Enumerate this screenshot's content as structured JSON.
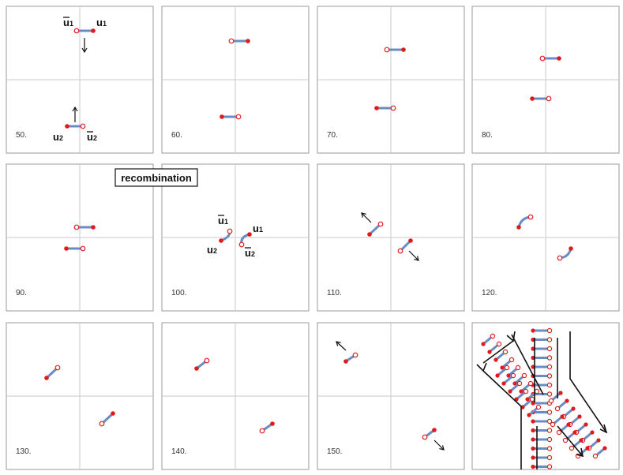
{
  "title_label": "recombination",
  "panels": [
    {
      "step": "50.",
      "pairs": [
        {
          "p": [
            118,
            39
          ],
          "a": [
            97,
            39
          ]
        },
        {
          "p": [
            85,
            160
          ],
          "a": [
            105,
            160
          ]
        }
      ],
      "labels": [
        {
          "text": "u",
          "sub": "1",
          "bar": false,
          "at": [
            122,
            33
          ]
        },
        {
          "text": "u",
          "sub": "1",
          "bar": true,
          "at": [
            80,
            33
          ]
        },
        {
          "text": "u",
          "sub": "2",
          "bar": false,
          "at": [
            67,
            178
          ]
        },
        {
          "text": "u",
          "sub": "2",
          "bar": true,
          "at": [
            110,
            178
          ]
        }
      ],
      "arrows": [
        {
          "from": [
            107,
            48
          ],
          "to": [
            107,
            66
          ]
        },
        {
          "from": [
            95,
            155
          ],
          "to": [
            95,
            136
          ]
        }
      ]
    },
    {
      "step": "60.",
      "pairs": [
        {
          "p": [
            314,
            52
          ],
          "a": [
            293,
            52
          ]
        },
        {
          "p": [
            281,
            148
          ],
          "a": [
            302,
            148
          ]
        }
      ]
    },
    {
      "step": "70.",
      "pairs": [
        {
          "p": [
            511,
            63
          ],
          "a": [
            490,
            63
          ]
        },
        {
          "p": [
            477,
            137
          ],
          "a": [
            498,
            137
          ]
        }
      ]
    },
    {
      "step": "80.",
      "pairs": [
        {
          "p": [
            708,
            74
          ],
          "a": [
            687,
            74
          ]
        },
        {
          "p": [
            674,
            125
          ],
          "a": [
            695,
            125
          ]
        }
      ]
    },
    {
      "step": "90.",
      "pairs": [
        {
          "p": [
            118,
            288
          ],
          "a": [
            97,
            288
          ]
        },
        {
          "p": [
            84,
            315
          ],
          "a": [
            105,
            315
          ]
        }
      ]
    },
    {
      "step": "100.",
      "pairs": [
        {
          "p": [
            280,
            305
          ],
          "a": [
            291,
            293
          ],
          "curve": [
            292,
            300
          ]
        },
        {
          "p": [
            316,
            297
          ],
          "a": [
            306,
            310
          ],
          "curve": [
            304,
            300
          ]
        }
      ],
      "labels": [
        {
          "text": "u",
          "sub": "1",
          "bar": true,
          "at": [
            276,
            284
          ]
        },
        {
          "text": "u",
          "sub": "1",
          "bar": false,
          "at": [
            320,
            294
          ]
        },
        {
          "text": "u",
          "sub": "2",
          "bar": false,
          "at": [
            262,
            321
          ]
        },
        {
          "text": "u",
          "sub": "2",
          "bar": true,
          "at": [
            310,
            325
          ]
        }
      ]
    },
    {
      "step": "110.",
      "pairs": [
        {
          "p": [
            468,
            297
          ],
          "a": [
            482,
            284
          ]
        },
        {
          "p": [
            520,
            305
          ],
          "a": [
            507,
            318
          ]
        }
      ],
      "arrows": [
        {
          "from": [
            470,
            282
          ],
          "to": [
            458,
            270
          ]
        },
        {
          "from": [
            518,
            318
          ],
          "to": [
            530,
            330
          ]
        }
      ]
    },
    {
      "step": "120.",
      "pairs": [
        {
          "p": [
            657,
            288
          ],
          "a": [
            672,
            275
          ],
          "curve": [
            660,
            276
          ]
        },
        {
          "p": [
            723,
            315
          ],
          "a": [
            709,
            327
          ],
          "curve": [
            720,
            326
          ]
        }
      ]
    },
    {
      "step": "130.",
      "pairs": [
        {
          "p": [
            59,
            479
          ],
          "a": [
            73,
            466
          ]
        },
        {
          "p": [
            143,
            524
          ],
          "a": [
            129,
            537
          ]
        }
      ]
    },
    {
      "step": "140.",
      "pairs": [
        {
          "p": [
            249,
            467
          ],
          "a": [
            262,
            457
          ]
        },
        {
          "p": [
            345,
            537
          ],
          "a": [
            332,
            546
          ]
        }
      ]
    },
    {
      "step": "150.",
      "pairs": [
        {
          "p": [
            438,
            458
          ],
          "a": [
            450,
            450
          ]
        },
        {
          "p": [
            550,
            545
          ],
          "a": [
            538,
            554
          ]
        }
      ],
      "arrows": [
        {
          "from": [
            438,
            444
          ],
          "to": [
            426,
            433
          ]
        },
        {
          "from": [
            550,
            558
          ],
          "to": [
            562,
            570
          ]
        }
      ]
    }
  ]
}
